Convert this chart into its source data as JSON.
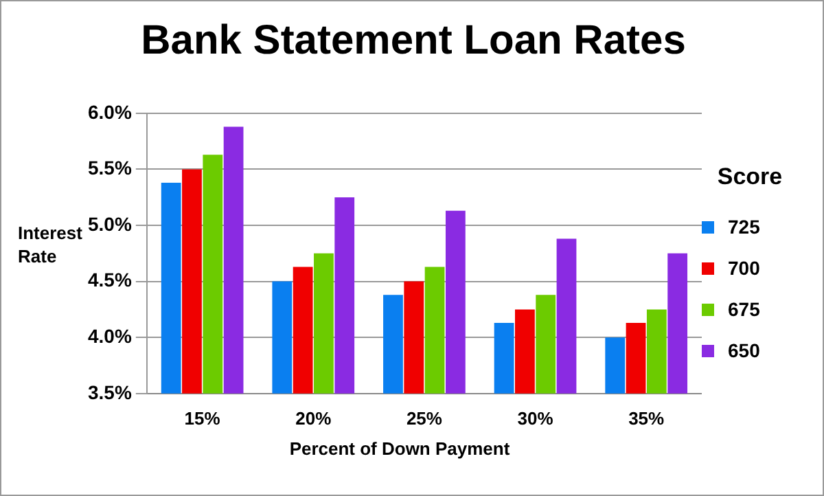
{
  "chart_data": {
    "type": "bar",
    "title": "Bank Statement Loan Rates",
    "xlabel": "Percent of Down Payment",
    "ylabel": "Interest Rate",
    "legend_title": "Score",
    "categories": [
      "15%",
      "20%",
      "25%",
      "30%",
      "35%"
    ],
    "series": [
      {
        "name": "725",
        "color": "#0a7ff0",
        "values": [
          5.38,
          4.5,
          4.38,
          4.13,
          4.0
        ]
      },
      {
        "name": "700",
        "color": "#f00000",
        "values": [
          5.5,
          4.63,
          4.5,
          4.25,
          4.13
        ]
      },
      {
        "name": "675",
        "color": "#6ccb00",
        "values": [
          5.63,
          4.75,
          4.63,
          4.38,
          4.25
        ]
      },
      {
        "name": "650",
        "color": "#8a2be2",
        "values": [
          5.88,
          5.25,
          5.13,
          4.88,
          4.75
        ]
      }
    ],
    "ylim": [
      3.5,
      6.0
    ],
    "yticks": [
      {
        "value": 3.5,
        "label": "3.5%"
      },
      {
        "value": 4.0,
        "label": "4.0%"
      },
      {
        "value": 4.5,
        "label": "4.5%"
      },
      {
        "value": 5.0,
        "label": "5.0%"
      },
      {
        "value": 5.5,
        "label": "5.5%"
      },
      {
        "value": 6.0,
        "label": "6.0%"
      }
    ],
    "grid": "y",
    "legend": "right"
  }
}
